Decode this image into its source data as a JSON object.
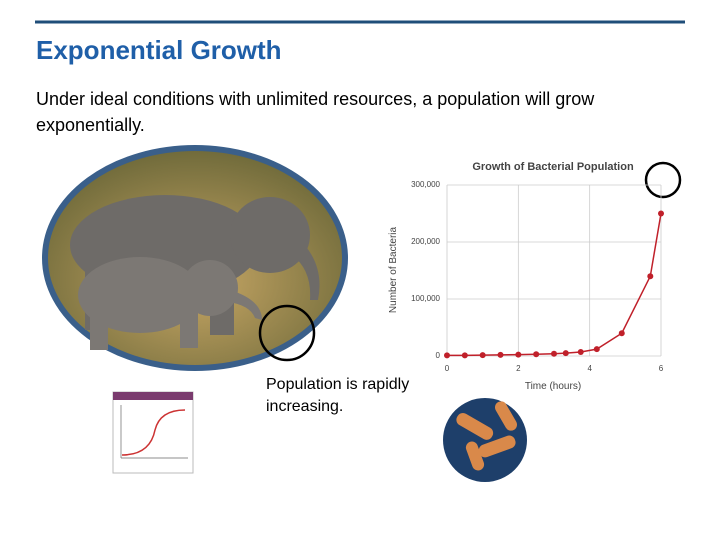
{
  "slide": {
    "title": "Exponential Growth",
    "body": "Under ideal conditions with unlimited resources, a population will grow exponentially.",
    "caption": "Population is rapidly increasing."
  },
  "chart_data": {
    "type": "line",
    "title": "Growth of Bacterial Population",
    "x_label": "Time (hours)",
    "y_label": "Number of Bacteria",
    "x": [
      0,
      0.5,
      1,
      1.5,
      2,
      2.5,
      3,
      3.33,
      3.75,
      4.2,
      4.9,
      5.7,
      6
    ],
    "series": [
      {
        "color": "#c0202a",
        "values": [
          1000,
          1000,
          1500,
          2000,
          2500,
          3000,
          4000,
          5000,
          7000,
          12000,
          40000,
          140000,
          250000
        ]
      }
    ],
    "xlim": [
      0,
      6
    ],
    "xticks": [
      0,
      2,
      4,
      6
    ],
    "ylim": [
      0,
      300000
    ],
    "yticks": [
      0,
      {
        "value": 100000,
        "label": "100,000"
      },
      {
        "value": 200000,
        "label": "200,000"
      },
      {
        "value": 300000,
        "label": "300,000"
      }
    ],
    "grid": true
  }
}
